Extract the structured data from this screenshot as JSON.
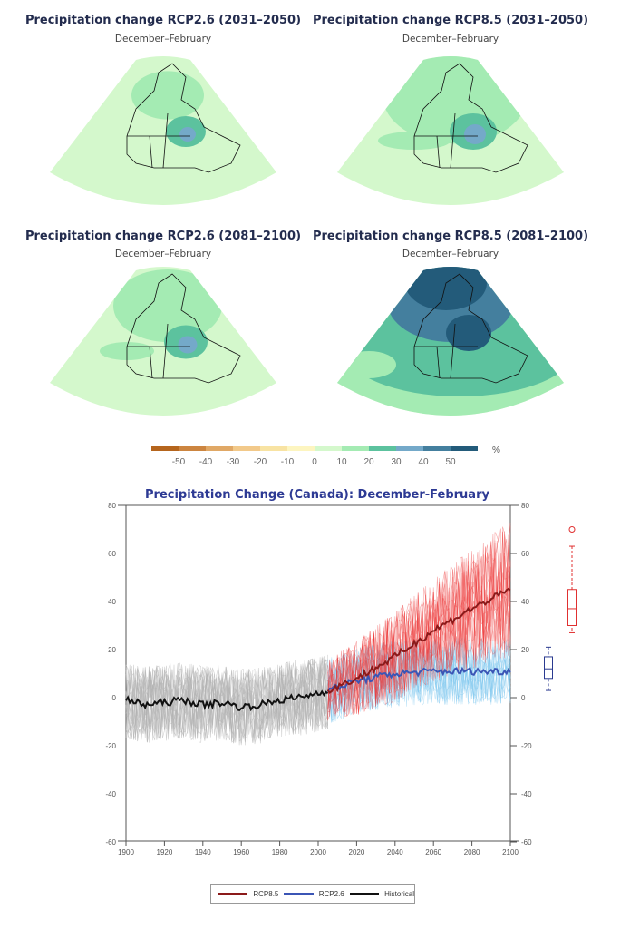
{
  "maps": [
    {
      "title": "Precipitation change RCP2.6 (2031–2050)",
      "season": "December–February",
      "intensity": 1
    },
    {
      "title": "Precipitation change RCP8.5 (2031–2050)",
      "season": "December–February",
      "intensity": 2
    },
    {
      "title": "Precipitation change RCP2.6 (2081–2100)",
      "season": "December–February",
      "intensity": 1.5
    },
    {
      "title": "Precipitation change RCP8.5 (2081–2100)",
      "season": "December–February",
      "intensity": 4
    }
  ],
  "colorbar": {
    "unit": "%",
    "ticks": [
      "-50",
      "-40",
      "-30",
      "-20",
      "-10",
      "0",
      "10",
      "20",
      "30",
      "40",
      "50"
    ],
    "colors": [
      "#b5651d",
      "#cc8540",
      "#e0a866",
      "#f2c98a",
      "#f8e3a3",
      "#fdf5c0",
      "#d4f8cc",
      "#a4ebb3",
      "#5cc29e",
      "#74a9c9",
      "#447f9e",
      "#235b7a"
    ]
  },
  "chart_data": {
    "type": "line",
    "title": "Precipitation Change (Canada): December-February",
    "xlim": [
      1900,
      2100
    ],
    "ylim": [
      -60,
      80
    ],
    "xticks": [
      "1900",
      "1920",
      "1940",
      "1960",
      "1980",
      "2000",
      "2020",
      "2040",
      "2060",
      "2080",
      "2100"
    ],
    "yticks": [
      "80",
      "60",
      "40",
      "20",
      "0",
      "-20",
      "-40",
      "-60"
    ],
    "legend": {
      "placement": "bottom",
      "entries": [
        "RCP8.5",
        "RCP2.6",
        "Historical"
      ]
    },
    "series": [
      {
        "name": "Historical",
        "color": "#111111",
        "x": [
          1900,
          1910,
          1920,
          1930,
          1940,
          1950,
          1960,
          1970,
          1980,
          1990,
          2000,
          2005
        ],
        "y": [
          -1,
          -3,
          -2,
          -1,
          -3,
          -2,
          -4,
          -3,
          -1,
          0,
          2,
          3
        ]
      },
      {
        "name": "RCP2.6",
        "color": "#3b55b5",
        "x": [
          2005,
          2020,
          2040,
          2060,
          2080,
          2100
        ],
        "y": [
          3,
          7,
          10,
          11,
          11,
          11
        ]
      },
      {
        "name": "RCP8.5",
        "color": "#8b1a1a",
        "x": [
          2005,
          2020,
          2040,
          2060,
          2080,
          2100
        ],
        "y": [
          3,
          8,
          17,
          28,
          37,
          45
        ]
      }
    ],
    "ensemble_colors": {
      "Historical": "#b3b3b3",
      "RCP2.6": "#7ec8ef",
      "RCP8.5": "#ee3a3a"
    },
    "boxplots": [
      {
        "name": "RCP8.5",
        "color": "#e03030",
        "whisker_low": 27,
        "q1": 30,
        "median": 37,
        "q3": 45,
        "whisker_high": 63,
        "outliers": [
          70
        ]
      },
      {
        "name": "RCP2.6",
        "color": "#2a3a90",
        "whisker_low": 3,
        "q1": 8,
        "median": 12,
        "q3": 17,
        "whisker_high": 21,
        "outliers": []
      }
    ]
  }
}
